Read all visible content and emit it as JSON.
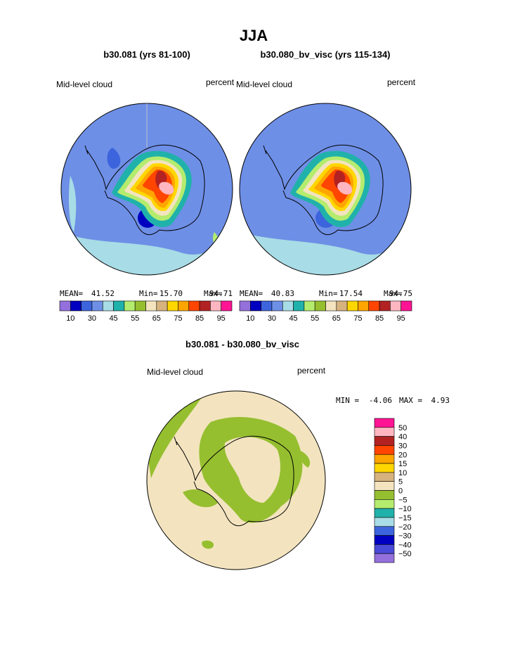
{
  "title": "JJA",
  "panels": [
    {
      "title": "b30.081 (yrs 81-100)",
      "variable": "Mid-level cloud",
      "units": "percent",
      "stats": [
        [
          "MEAN=",
          "41.52"
        ],
        [
          "Min=",
          "15.70"
        ],
        [
          "Max=",
          "94.71"
        ]
      ]
    },
    {
      "title": "b30.080_bv_visc (yrs 115-134)",
      "variable": "Mid-level cloud",
      "units": "percent",
      "stats": [
        [
          "MEAN=",
          "40.83"
        ],
        [
          "Min=",
          "17.54"
        ],
        [
          "Max=",
          "94.75"
        ]
      ]
    }
  ],
  "colorbar": {
    "colors": [
      "#9370db",
      "#0000c0",
      "#3c64dc",
      "#6e8fe6",
      "#a8dce6",
      "#20b2aa",
      "#b4ec6e",
      "#96bf30",
      "#f3e4bf",
      "#d6b27e",
      "#ffd700",
      "#ffa500",
      "#ff4500",
      "#b22222",
      "#ffb6c1",
      "#ff1493"
    ],
    "labels": [
      "10",
      "30",
      "45",
      "55",
      "65",
      "75",
      "85",
      "95"
    ]
  },
  "difference": {
    "title": "b30.081 - b30.080_bv_visc",
    "variable": "Mid-level cloud",
    "units": "percent",
    "stats": [
      [
        "MIN =",
        "-4.06"
      ],
      [
        "MAX =",
        "4.93"
      ]
    ],
    "colorbar": {
      "colors": [
        "#ff1493",
        "#ffb6c1",
        "#b22222",
        "#ff4500",
        "#ffa500",
        "#ffd700",
        "#d6b27e",
        "#f3e4bf",
        "#96bf30",
        "#b4ec6e",
        "#20b2aa",
        "#a8dce6",
        "#3c64dc",
        "#0000c0",
        "#4a4ad8",
        "#9370db"
      ],
      "labels": [
        "50",
        "40",
        "30",
        "20",
        "15",
        "10",
        "5",
        "0",
        "−5",
        "−10",
        "−15",
        "−20",
        "−30",
        "−40",
        "−50"
      ]
    }
  }
}
